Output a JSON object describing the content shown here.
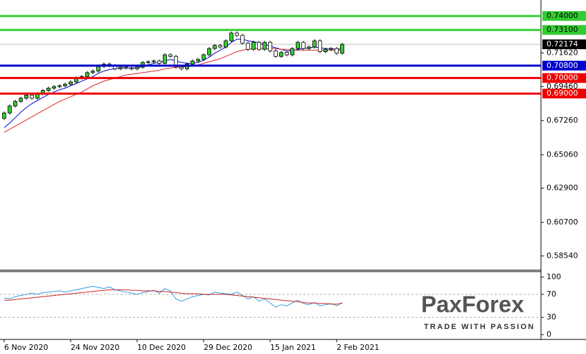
{
  "chart_data": [
    {
      "type": "candlestick",
      "categories": [
        "6 Nov 2020",
        null,
        null,
        null,
        null,
        null,
        null,
        null,
        null,
        null,
        null,
        null,
        "24 Nov 2020",
        null,
        null,
        null,
        null,
        null,
        null,
        null,
        null,
        null,
        null,
        null,
        "10 Dec 2020",
        null,
        null,
        null,
        null,
        null,
        null,
        null,
        null,
        null,
        null,
        null,
        "29 Dec 2020",
        null,
        null,
        null,
        null,
        null,
        null,
        null,
        null,
        null,
        null,
        null,
        "15 Jan 2021",
        null,
        null,
        null,
        null,
        null,
        null,
        null,
        null,
        null,
        null,
        null,
        "2 Feb 2021",
        null
      ],
      "open": [
        0.674,
        0.6775,
        0.682,
        0.685,
        0.687,
        0.689,
        0.687,
        0.69,
        0.692,
        0.6935,
        0.6945,
        0.695,
        0.696,
        0.6975,
        0.7,
        0.701,
        0.7035,
        0.7045,
        0.7075,
        0.709,
        0.708,
        0.706,
        0.707,
        0.7065,
        0.706,
        0.707,
        0.71,
        0.7105,
        0.711,
        0.7095,
        0.715,
        0.714,
        0.707,
        0.706,
        0.709,
        0.711,
        0.712,
        0.715,
        0.719,
        0.721,
        0.72,
        0.724,
        0.729,
        0.7275,
        0.7225,
        0.7185,
        0.723,
        0.7185,
        0.723,
        0.7175,
        0.714,
        0.7165,
        0.715,
        0.719,
        0.723,
        0.719,
        0.72,
        0.724,
        0.717,
        0.7185,
        0.719,
        0.716
      ],
      "high": [
        0.6785,
        0.683,
        0.686,
        0.688,
        0.69,
        0.69,
        0.691,
        0.693,
        0.6945,
        0.6955,
        0.696,
        0.697,
        0.6985,
        0.701,
        0.702,
        0.7045,
        0.7055,
        0.7085,
        0.71,
        0.71,
        0.709,
        0.708,
        0.708,
        0.7075,
        0.708,
        0.711,
        0.7115,
        0.712,
        0.712,
        0.716,
        0.716,
        0.715,
        0.708,
        0.71,
        0.712,
        0.713,
        0.716,
        0.72,
        0.722,
        0.722,
        0.725,
        0.73,
        0.73,
        0.7285,
        0.7235,
        0.724,
        0.724,
        0.724,
        0.724,
        0.7185,
        0.7175,
        0.7175,
        0.72,
        0.724,
        0.724,
        0.721,
        0.725,
        0.725,
        0.7195,
        0.72,
        0.72,
        0.7227
      ],
      "low": [
        0.673,
        0.6765,
        0.681,
        0.684,
        0.686,
        0.686,
        0.686,
        0.689,
        0.691,
        0.6925,
        0.6935,
        0.694,
        0.695,
        0.6965,
        0.699,
        0.7,
        0.7025,
        0.7035,
        0.7065,
        0.707,
        0.705,
        0.705,
        0.7055,
        0.705,
        0.705,
        0.706,
        0.709,
        0.7095,
        0.7085,
        0.7085,
        0.713,
        0.706,
        0.705,
        0.705,
        0.708,
        0.71,
        0.711,
        0.714,
        0.718,
        0.719,
        0.719,
        0.723,
        0.7265,
        0.7215,
        0.7175,
        0.7175,
        0.7175,
        0.7175,
        0.7165,
        0.713,
        0.713,
        0.714,
        0.714,
        0.718,
        0.718,
        0.718,
        0.719,
        0.716,
        0.716,
        0.7175,
        0.715,
        0.715
      ],
      "close": [
        0.6775,
        0.682,
        0.685,
        0.687,
        0.689,
        0.687,
        0.69,
        0.692,
        0.6935,
        0.6945,
        0.695,
        0.696,
        0.6975,
        0.7,
        0.701,
        0.7035,
        0.7045,
        0.7075,
        0.709,
        0.708,
        0.706,
        0.707,
        0.7065,
        0.706,
        0.707,
        0.71,
        0.7105,
        0.711,
        0.7095,
        0.715,
        0.714,
        0.707,
        0.706,
        0.709,
        0.711,
        0.712,
        0.715,
        0.719,
        0.721,
        0.72,
        0.724,
        0.729,
        0.7275,
        0.7225,
        0.7185,
        0.723,
        0.7185,
        0.723,
        0.7175,
        0.714,
        0.7165,
        0.715,
        0.719,
        0.723,
        0.719,
        0.72,
        0.724,
        0.717,
        0.7185,
        0.719,
        0.716,
        0.7217
      ],
      "up_color": "#33cc33",
      "down_color": "#ffffff",
      "overlays": [
        {
          "color": "#0000cc",
          "values": [
            0.668,
            0.671,
            0.6745,
            0.678,
            0.681,
            0.6835,
            0.6855,
            0.6875,
            0.6895,
            0.691,
            0.6925,
            0.6935,
            0.695,
            0.6965,
            0.698,
            0.6995,
            0.701,
            0.703,
            0.7045,
            0.7055,
            0.706,
            0.7065,
            0.7065,
            0.7065,
            0.7065,
            0.7075,
            0.7085,
            0.7095,
            0.71,
            0.711,
            0.712,
            0.711,
            0.71,
            0.7095,
            0.7095,
            0.71,
            0.7115,
            0.7135,
            0.716,
            0.718,
            0.72,
            0.723,
            0.725,
            0.725,
            0.724,
            0.7235,
            0.7225,
            0.7215,
            0.7205,
            0.7195,
            0.7185,
            0.7175,
            0.7175,
            0.7185,
            0.719,
            0.7195,
            0.72,
            0.7195,
            0.719,
            0.719,
            0.7185,
            0.719
          ]
        },
        {
          "color": "#dd2222",
          "values": [
            0.665,
            0.667,
            0.669,
            0.671,
            0.673,
            0.675,
            0.677,
            0.679,
            0.681,
            0.683,
            0.685,
            0.6865,
            0.688,
            0.6895,
            0.691,
            0.693,
            0.695,
            0.6965,
            0.698,
            0.699,
            0.7,
            0.701,
            0.702,
            0.7025,
            0.703,
            0.7035,
            0.704,
            0.7045,
            0.705,
            0.706,
            0.7065,
            0.707,
            0.707,
            0.7075,
            0.708,
            0.7085,
            0.7095,
            0.7105,
            0.7115,
            0.7125,
            0.714,
            0.7155,
            0.717,
            0.718,
            0.7185,
            0.719,
            0.719,
            0.719,
            0.719,
            0.719,
            0.7185,
            0.7185,
            0.718,
            0.718,
            0.718,
            0.718,
            0.718,
            0.718,
            0.718,
            0.718,
            0.718,
            0.718
          ]
        }
      ],
      "levels": [
        {
          "value": 0.74,
          "label": "0.74000",
          "color": "#33cc33",
          "text_color": "#000000"
        },
        {
          "value": 0.731,
          "label": "0.73100",
          "color": "#33cc33",
          "text_color": "#000000"
        },
        {
          "value": 0.708,
          "label": "0.70800",
          "color": "#0000cc",
          "text_color": "#ffffff"
        },
        {
          "value": 0.7,
          "label": "0.70000",
          "color": "#ee0000",
          "text_color": "#ffffff"
        },
        {
          "value": 0.69,
          "label": "0.69000",
          "color": "#ee0000",
          "text_color": "#ffffff"
        }
      ],
      "current_price": {
        "value": 0.72174,
        "label": "0.72174"
      },
      "ylim": [
        0.5762,
        0.7503
      ],
      "yticks": [
        {
          "value": 0.7162,
          "label": "0.71620"
        },
        {
          "value": 0.6946,
          "label": "0.69460"
        },
        {
          "value": 0.6726,
          "label": "0.67260"
        },
        {
          "value": 0.6506,
          "label": "0.65060"
        },
        {
          "value": 0.629,
          "label": "0.62900"
        },
        {
          "value": 0.607,
          "label": "0.60700"
        },
        {
          "value": 0.5854,
          "label": "0.58540"
        }
      ]
    },
    {
      "type": "line",
      "series": [
        {
          "color": "#3399dd",
          "values": [
            64,
            62,
            66,
            68,
            70,
            72,
            70,
            73,
            74,
            75,
            76,
            74,
            76,
            78,
            80,
            82,
            84,
            82,
            80,
            83,
            78,
            76,
            74,
            72,
            70,
            73,
            75,
            77,
            72,
            80,
            76,
            62,
            58,
            62,
            66,
            68,
            70,
            69,
            74,
            72,
            71,
            70,
            74,
            68,
            62,
            66,
            58,
            62,
            55,
            48,
            52,
            50,
            55,
            60,
            54,
            52,
            56,
            50,
            52,
            54,
            50,
            56
          ]
        },
        {
          "color": "#cc2222",
          "values": [
            60,
            60,
            61,
            62,
            63,
            64,
            65,
            66,
            67,
            68,
            69,
            70,
            71,
            72,
            73,
            74,
            75,
            76,
            77,
            78,
            78,
            78,
            78,
            77,
            77,
            76,
            76,
            76,
            75,
            75,
            74,
            73,
            72,
            71,
            71,
            71,
            70,
            70,
            70,
            70,
            70,
            69,
            68,
            67,
            66,
            65,
            64,
            63,
            62,
            61,
            60,
            59,
            58,
            57,
            56,
            55,
            55,
            54,
            54,
            53,
            53,
            54
          ]
        }
      ],
      "levels": [
        70,
        30
      ],
      "ylim": [
        -8.4,
        109.6
      ],
      "yticks": [
        100,
        70,
        30,
        0
      ]
    }
  ],
  "logo": {
    "name": "PaxForex",
    "tagline": "TRADE WITH PASSION"
  }
}
